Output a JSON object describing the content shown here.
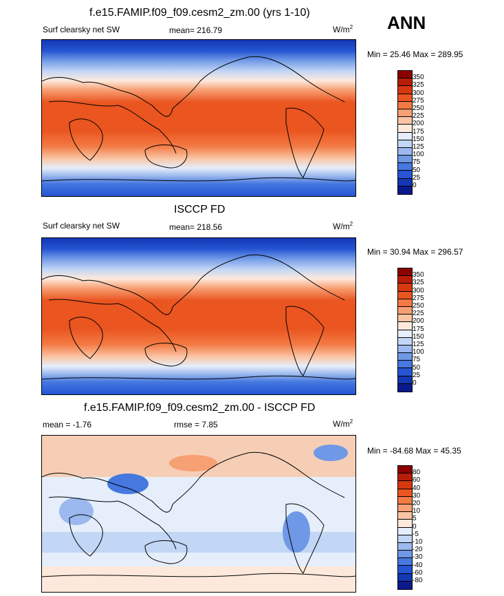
{
  "ann_label": "ANN",
  "panels": [
    {
      "title": "f.e15.FAMIP.f09_f09.cesm2_zm.00 (yrs 1-10)",
      "left_label": "Surf clearsky net SW",
      "stat_label": "mean= 216.79",
      "units": "W/m",
      "units_sup": "2",
      "minmax": "Min =  25.46 Max = 289.95",
      "colorbar": {
        "labels": [
          "350",
          "325",
          "300",
          "275",
          "250",
          "225",
          "200",
          "175",
          "150",
          "125",
          "100",
          "75",
          "50",
          "25",
          "0"
        ],
        "colors": [
          "#8b0000",
          "#b81d09",
          "#d8380f",
          "#ea5520",
          "#f37a43",
          "#f7a074",
          "#fac5a5",
          "#fde9dc",
          "#e5eefa",
          "#c2d6f5",
          "#9bb9ee",
          "#6f98e6",
          "#4678e0",
          "#2555d3",
          "#1437b4",
          "#0a1a8c"
        ]
      }
    },
    {
      "title": "ISCCP FD",
      "left_label": "Surf clearsky net SW",
      "stat_label": "mean= 218.56",
      "units": "W/m",
      "units_sup": "2",
      "minmax": "Min =  30.94 Max = 296.57",
      "colorbar": {
        "labels": [
          "350",
          "325",
          "300",
          "275",
          "250",
          "225",
          "200",
          "175",
          "150",
          "125",
          "100",
          "75",
          "50",
          "25",
          "0"
        ],
        "colors": [
          "#8b0000",
          "#b81d09",
          "#d8380f",
          "#ea5520",
          "#f37a43",
          "#f7a074",
          "#fac5a5",
          "#fde9dc",
          "#e5eefa",
          "#c2d6f5",
          "#9bb9ee",
          "#6f98e6",
          "#4678e0",
          "#2555d3",
          "#1437b4",
          "#0a1a8c"
        ]
      }
    },
    {
      "title": "f.e15.FAMIP.f09_f09.cesm2_zm.00 - ISCCP FD",
      "left_label": "mean =  -1.76",
      "stat_label": "rmse =   7.85",
      "units": "W/m",
      "units_sup": "2",
      "minmax": "Min = -84.68 Max =  45.35",
      "colorbar": {
        "labels": [
          "80",
          "60",
          "40",
          "30",
          "20",
          "10",
          "5",
          "0",
          "-5",
          "-10",
          "-20",
          "-30",
          "-40",
          "-60",
          "-80"
        ],
        "colors": [
          "#8b0000",
          "#b81d09",
          "#d8380f",
          "#ea5520",
          "#f37a43",
          "#f7a074",
          "#fac5a5",
          "#fde9dc",
          "#e5eefa",
          "#c2d6f5",
          "#9bb9ee",
          "#6f98e6",
          "#4678e0",
          "#2555d3",
          "#1437b4",
          "#0a1a8c"
        ]
      }
    }
  ]
}
